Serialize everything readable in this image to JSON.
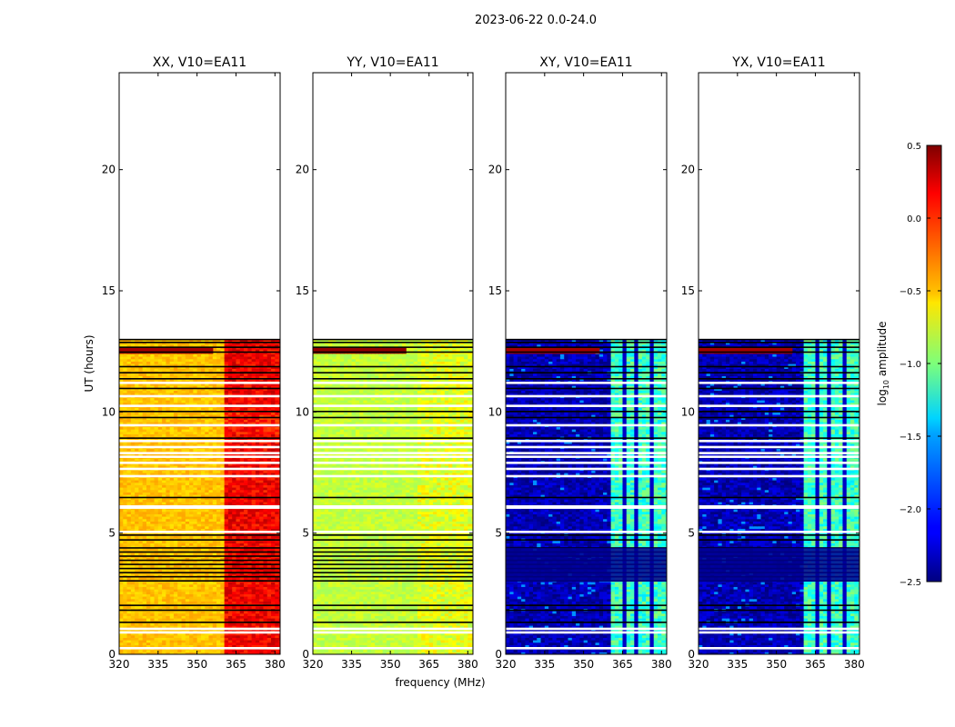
{
  "figure": {
    "suptitle": "2023-06-22 0.0-24.0",
    "xlabel": "frequency (MHz)",
    "ylabel": "UT (hours)"
  },
  "colorbar": {
    "label": "log10 amplitude",
    "label_base": "log",
    "label_sub": "10",
    "label_rest": " amplitude",
    "range": [
      -2.5,
      0.5
    ],
    "ticks": [
      0.5,
      0.0,
      -0.5,
      -1.0,
      -1.5,
      -2.0,
      -2.5
    ],
    "tick_labels": [
      "0.5",
      "0.0",
      "−0.5",
      "−1.0",
      "−1.5",
      "−2.0",
      "−2.5"
    ],
    "colormap": "jet"
  },
  "chart_data": [
    {
      "type": "heatmap",
      "title": "XX, V10=EA11",
      "xlim": [
        320,
        382
      ],
      "ylim": [
        0,
        24
      ],
      "xticks": [
        320,
        335,
        350,
        365,
        380
      ],
      "yticks": [
        0,
        5,
        10,
        15,
        20
      ],
      "data_extent_hours": [
        0,
        13
      ],
      "typical_log10_amplitude": {
        "below_360MHz": -0.45,
        "above_360MHz": 0.15
      }
    },
    {
      "type": "heatmap",
      "title": "YY, V10=EA11",
      "xlim": [
        320,
        382
      ],
      "ylim": [
        0,
        24
      ],
      "xticks": [
        320,
        335,
        350,
        365,
        380
      ],
      "yticks": [
        0,
        5,
        10,
        15,
        20
      ],
      "data_extent_hours": [
        0,
        13
      ],
      "typical_log10_amplitude": {
        "below_360MHz": -0.8,
        "above_360MHz": -0.7
      }
    },
    {
      "type": "heatmap",
      "title": "XY, V10=EA11",
      "xlim": [
        320,
        382
      ],
      "ylim": [
        0,
        24
      ],
      "xticks": [
        320,
        335,
        350,
        365,
        380
      ],
      "yticks": [
        0,
        5,
        10,
        15,
        20
      ],
      "data_extent_hours": [
        0,
        13
      ],
      "typical_log10_amplitude": {
        "below_360MHz": -2.35,
        "above_360MHz": -1.2
      }
    },
    {
      "type": "heatmap",
      "title": "YX, V10=EA11",
      "xlim": [
        320,
        382
      ],
      "ylim": [
        0,
        24
      ],
      "xticks": [
        320,
        335,
        350,
        365,
        380
      ],
      "yticks": [
        0,
        5,
        10,
        15,
        20
      ],
      "data_extent_hours": [
        0,
        13
      ],
      "typical_log10_amplitude": {
        "below_360MHz": -2.35,
        "above_360MHz": -1.2
      }
    }
  ]
}
